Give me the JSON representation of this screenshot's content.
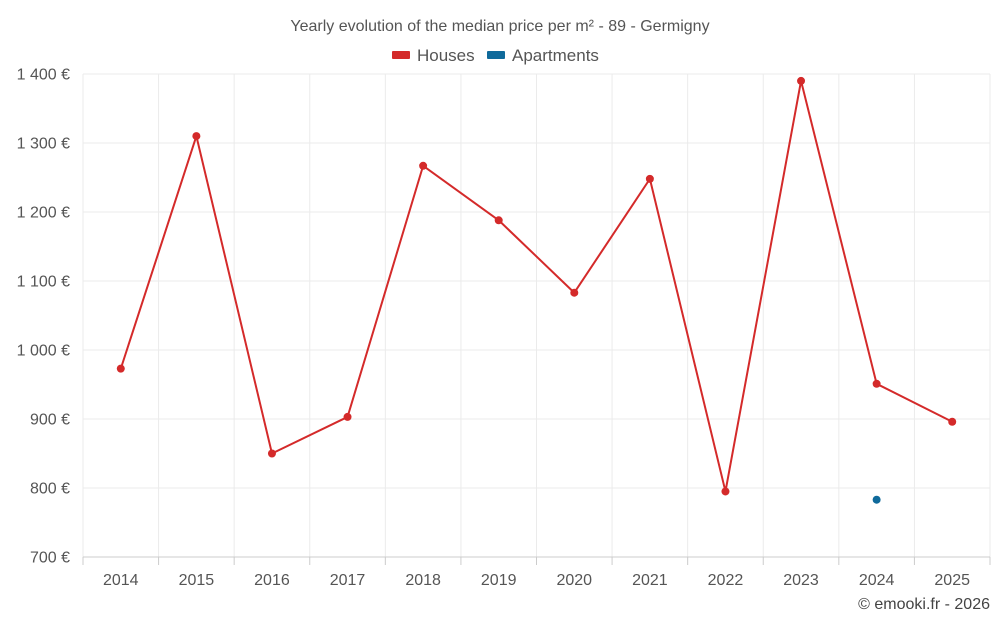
{
  "chart_data": {
    "type": "line",
    "title": "Yearly evolution of the median price per m² - 89 - Germigny",
    "xlabel": "",
    "ylabel": "",
    "categories": [
      "2014",
      "2015",
      "2016",
      "2017",
      "2018",
      "2019",
      "2020",
      "2021",
      "2022",
      "2023",
      "2024",
      "2025"
    ],
    "ylim": [
      700,
      1400
    ],
    "yticks": [
      700,
      800,
      900,
      1000,
      1100,
      1200,
      1300,
      1400
    ],
    "ytick_labels": [
      "700 €",
      "800 €",
      "900 €",
      "1 000 €",
      "1 100 €",
      "1 200 €",
      "1 300 €",
      "1 400 €"
    ],
    "grid": true,
    "legend_position": "top-center",
    "series": [
      {
        "name": "Houses",
        "color": "#d42a2a",
        "values": [
          973,
          1310,
          850,
          903,
          1267,
          1188,
          1083,
          1248,
          795,
          1390,
          951,
          896
        ]
      },
      {
        "name": "Apartments",
        "color": "#0f6a9b",
        "values": [
          null,
          null,
          null,
          null,
          null,
          null,
          null,
          null,
          null,
          null,
          783,
          null
        ]
      }
    ]
  },
  "credit": "© emooki.fr - 2026"
}
